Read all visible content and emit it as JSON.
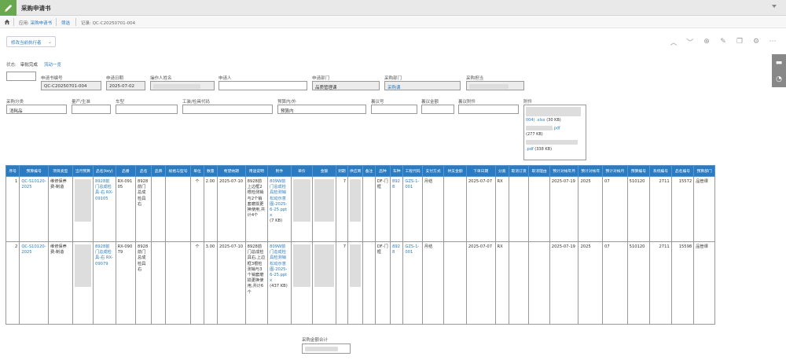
{
  "app": {
    "title": "采购申请书"
  },
  "nav": {
    "app_prefix": "应用:",
    "app_name": "采购申请书",
    "tab": "筛选",
    "record_prefix": "记录:",
    "record_id": "QC-C20250701-004"
  },
  "toolbar": {
    "exec_label": "修改当前执行者"
  },
  "status": {
    "label": "状态:",
    "value": "审批完成",
    "flow_link": "流动一览"
  },
  "fields": {
    "req_no": {
      "label": "申请书编号",
      "value": "QC-C20250701-004"
    },
    "req_date": {
      "label": "申请日期",
      "value": "2025-07-02"
    },
    "operator": {
      "label": "操作人姓名",
      "value": ""
    },
    "applicant": {
      "label": "申请人",
      "value": ""
    },
    "req_dept": {
      "label": "申请部门",
      "value": "品质管理课"
    },
    "purchase_dept": {
      "label": "采购部门",
      "value": "采购课"
    },
    "purchaser": {
      "label": "采购担当",
      "value": ""
    },
    "category": {
      "label": "采购分类",
      "value": "消耗品"
    },
    "mass": {
      "label": "量产/生准",
      "value": ""
    },
    "car_type": {
      "label": "车型",
      "value": ""
    },
    "tool_code": {
      "label": "工装/检具代码",
      "value": ""
    },
    "budget": {
      "label": "预算内/外",
      "value": "预算内"
    },
    "meeting_no": {
      "label": "裏议号",
      "value": ""
    },
    "meeting_amt": {
      "label": "裏议金额",
      "value": ""
    },
    "meeting_att": {
      "label": "裏议附件",
      "value": ""
    },
    "attach": {
      "label": "附件"
    }
  },
  "attachments": [
    {
      "name": "004) .xlsx",
      "size": "(30 KB)"
    },
    {
      "name": ".pdf",
      "size": "(277 KB)"
    },
    {
      "name": ".pdf",
      "size": "(338 KB)"
    }
  ],
  "table": {
    "headers": [
      "序号",
      "预算编号",
      "项目类型",
      "当月预算",
      "品名(key)",
      "品番",
      "品名",
      "品牌",
      "规格与型号",
      "单位",
      "数量",
      "希望纳期",
      "用途说明",
      "附件",
      "单价",
      "金额",
      "到期",
      "供应商",
      "备注",
      "品种",
      "车种",
      "工程代码",
      "支付方式",
      "供支金额",
      "下单日期",
      "分类",
      "取消订货",
      "取消理由",
      "预计对帐年月",
      "预计对帐年",
      "预计对帐月",
      "预算编号",
      "系统编号",
      "品名编号",
      "预算部门"
    ],
    "rows": [
      {
        "no": "1",
        "budget_no": "QC-S10120-2025",
        "type": "维修保养费-制造",
        "month_budget": "",
        "name_key": "8928前门总成检具-右 RX-09105",
        "part_no": "RX-09105",
        "name": "8928前门总成检具右",
        "brand": "",
        "spec": "",
        "unit": "个",
        "qty": "2.00",
        "due": "2025-07-10",
        "purpose": "8928前上边框2根检测销与2个销套磨损更换使用,共计4个",
        "attach": "809W前门总成检具检测销松动示意图-2025-6-25.pptx",
        "attach_size": "(7 KB)",
        "price": "",
        "amount": "",
        "expire": "7",
        "supplier": "",
        "remark": "",
        "kind": "DF-门框",
        "car": "8928",
        "eng_code": "GZS-1-001",
        "pay": "月结",
        "pay_amt": "",
        "order_date": "2025-07-07",
        "cls": "RX",
        "cancel": "",
        "cancel_reason": "",
        "settle_ym": "2025-07-19",
        "settle_y": "2025",
        "settle_m": "07",
        "budget_no2": "510120",
        "sys_no": "2711",
        "name_no": "15572",
        "budget_dept": "品管课"
      },
      {
        "no": "2",
        "budget_no": "QC-S10120-2025",
        "type": "维修保养费-制造",
        "month_budget": "",
        "name_key": "8928前门总成检具-右 RX-09079",
        "part_no": "RX-09079",
        "name": "8928前门总成检具右",
        "brand": "",
        "spec": "",
        "unit": "个",
        "qty": "3.00",
        "due": "2025-07-10",
        "purpose": "8928前门总成检具右,上边框3根检测销与3个销套磨损更换使用,共计6个",
        "attach": "809W前门总成检具检测销松动示意图-2025-6-25.pptx",
        "attach_size": "(437 KB)",
        "price": "",
        "amount": "",
        "expire": "7",
        "supplier": "",
        "remark": "",
        "kind": "DF-门框",
        "car": "8928",
        "eng_code": "GZS-1-001",
        "pay": "月结",
        "pay_amt": "",
        "order_date": "2025-07-07",
        "cls": "RX",
        "cancel": "",
        "cancel_reason": "",
        "settle_ym": "2025-07-19",
        "settle_y": "2025",
        "settle_m": "07",
        "budget_no2": "510120",
        "sys_no": "2711",
        "name_no": "15598",
        "budget_dept": "品管课"
      }
    ]
  },
  "total": {
    "label": "采购金额合计",
    "value": ""
  },
  "colors": {
    "accent": "#2a7bc1",
    "app_icon": "#6aa84f",
    "header_bg": "#2a7bc1"
  }
}
